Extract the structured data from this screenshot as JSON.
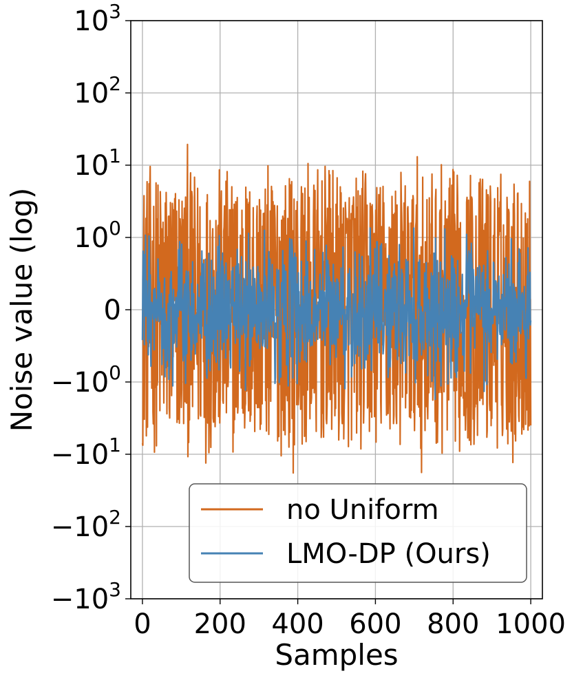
{
  "chart_data": {
    "type": "line",
    "xlabel": "Samples",
    "ylabel": "Noise value (log)",
    "y_scale": "symlog",
    "xlim": [
      -30,
      1030
    ],
    "ylim": [
      -1000,
      1000
    ],
    "x_ticks": [
      {
        "value": 0,
        "label": "0"
      },
      {
        "value": 200,
        "label": "200"
      },
      {
        "value": 400,
        "label": "400"
      },
      {
        "value": 600,
        "label": "600"
      },
      {
        "value": 800,
        "label": "800"
      },
      {
        "value": 1000,
        "label": "1000"
      }
    ],
    "y_ticks": [
      {
        "value": 1000,
        "base": "10",
        "sign": "",
        "exp": "3"
      },
      {
        "value": 100,
        "base": "10",
        "sign": "",
        "exp": "2"
      },
      {
        "value": 10,
        "base": "10",
        "sign": "",
        "exp": "1"
      },
      {
        "value": 1,
        "base": "10",
        "sign": "",
        "exp": "0"
      },
      {
        "value": 0,
        "base": "0",
        "sign": "",
        "exp": ""
      },
      {
        "value": -1,
        "base": "10",
        "sign": "−",
        "exp": "0"
      },
      {
        "value": -10,
        "base": "10",
        "sign": "−",
        "exp": "1"
      },
      {
        "value": -100,
        "base": "10",
        "sign": "−",
        "exp": "2"
      },
      {
        "value": -1000,
        "base": "10",
        "sign": "−",
        "exp": "3"
      }
    ],
    "grid": true,
    "legend_position": "bottom-right",
    "series": [
      {
        "name": "no Uniform",
        "color": "#d2691e",
        "n_samples": 1000,
        "approx_range": [
          -60,
          25
        ]
      },
      {
        "name": "LMO-DP (Ours)",
        "color": "#4682b4",
        "n_samples": 1000,
        "approx_range": [
          -3,
          2.5
        ]
      }
    ]
  }
}
